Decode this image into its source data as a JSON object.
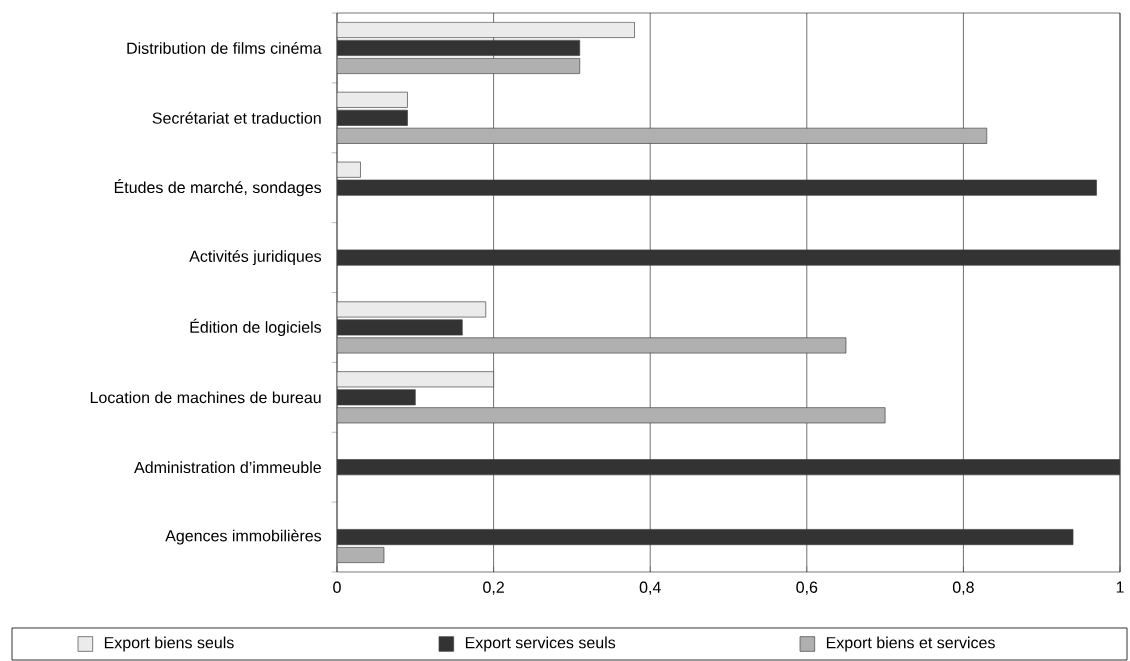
{
  "chart_data": {
    "type": "bar",
    "orientation": "horizontal",
    "categories": [
      "Distribution de films cinéma",
      "Secrétariat et traduction",
      "Études de marché, sondages",
      "Activités juridiques",
      "Édition de logiciels",
      "Location de machines de bureau",
      "Administration d’immeuble",
      "Agences immobilières"
    ],
    "series": [
      {
        "name": "Export biens seuls",
        "color": "#ebebeb",
        "values": [
          0.38,
          0.09,
          0.03,
          null,
          0.19,
          0.2,
          null,
          null
        ]
      },
      {
        "name": "Export services seuls",
        "color": "#333333",
        "values": [
          0.31,
          0.09,
          0.97,
          1,
          0.16,
          0.1,
          1,
          0.94
        ]
      },
      {
        "name": "Export biens et services",
        "color": "#b0b0b0",
        "values": [
          0.31,
          0.83,
          null,
          null,
          0.65,
          0.7,
          null,
          0.06
        ]
      }
    ],
    "xlim": [
      0,
      1
    ],
    "xticks": [
      0,
      {
        "value": 0.2,
        "label": "0,2"
      },
      {
        "value": 0.4,
        "label": "0,4"
      },
      {
        "value": 0.6,
        "label": "0,6"
      },
      {
        "value": 0.8,
        "label": "0,8"
      },
      1
    ],
    "grid": "x",
    "legend": "bottom"
  }
}
